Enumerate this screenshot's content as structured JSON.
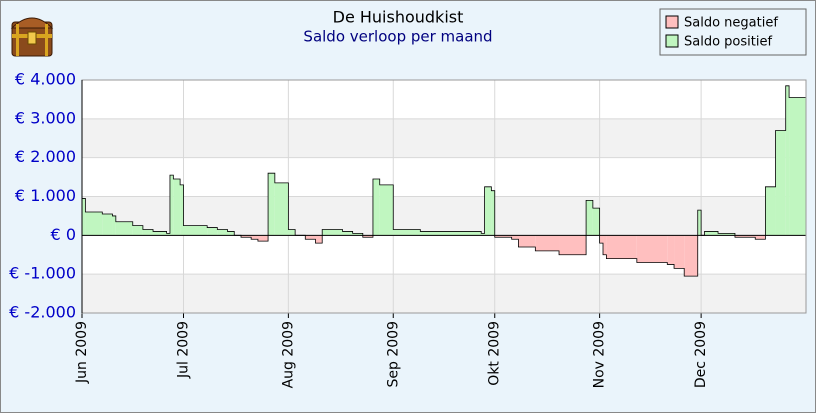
{
  "chart_data": {
    "type": "step-area",
    "title": "De Huishoudkist",
    "subtitle": "Saldo verloop per maand",
    "x": [
      0,
      1,
      6,
      9,
      10,
      15,
      18,
      21,
      25,
      26,
      27,
      29,
      30,
      37,
      40,
      43,
      45,
      47,
      50,
      52,
      55,
      57,
      61,
      63,
      66,
      69,
      71,
      77,
      80,
      83,
      86,
      88,
      92,
      100,
      118,
      119,
      121,
      122,
      127,
      129,
      134,
      141,
      149,
      151,
      153,
      154,
      155,
      164,
      173,
      175,
      178,
      182,
      183,
      184,
      188,
      193,
      199,
      202,
      205,
      208,
      209
    ],
    "values": [
      950,
      600,
      550,
      500,
      350,
      250,
      150,
      100,
      50,
      1550,
      1450,
      1300,
      250,
      200,
      150,
      100,
      0,
      -50,
      -100,
      -150,
      1600,
      1350,
      150,
      0,
      -100,
      -200,
      150,
      100,
      50,
      -50,
      1450,
      1300,
      150,
      100,
      50,
      1250,
      1150,
      -50,
      -100,
      -300,
      -400,
      -500,
      900,
      700,
      -200,
      -500,
      -600,
      -700,
      -750,
      -850,
      -1050,
      650,
      0,
      100,
      50,
      -50,
      -100,
      1250,
      2700,
      3850,
      3550
    ],
    "xlim": [
      0,
      214
    ],
    "xticks": [
      {
        "value": 0,
        "label": "Jun 2009"
      },
      {
        "value": 30,
        "label": "Jul 2009"
      },
      {
        "value": 61,
        "label": "Aug 2009"
      },
      {
        "value": 92,
        "label": "Sep 2009"
      },
      {
        "value": 122,
        "label": "Okt 2009"
      },
      {
        "value": 153,
        "label": "Nov 2009"
      },
      {
        "value": 183,
        "label": "Dec 2009"
      }
    ],
    "ylim": [
      -2000,
      4000
    ],
    "yticks": [
      {
        "value": -2000,
        "label": "€ -2.000"
      },
      {
        "value": -1000,
        "label": "€ -1.000"
      },
      {
        "value": 0,
        "label": "€ 0"
      },
      {
        "value": 1000,
        "label": "€ 1.000"
      },
      {
        "value": 2000,
        "label": "€ 2.000"
      },
      {
        "value": 3000,
        "label": "€ 3.000"
      },
      {
        "value": 4000,
        "label": "€ 4.000"
      }
    ],
    "grid": true,
    "legend": [
      {
        "name": "Saldo negatief",
        "color": "#ffbfbf"
      },
      {
        "name": "Saldo positief",
        "color": "#c0f6c0"
      }
    ],
    "legend_position": "top-right"
  }
}
